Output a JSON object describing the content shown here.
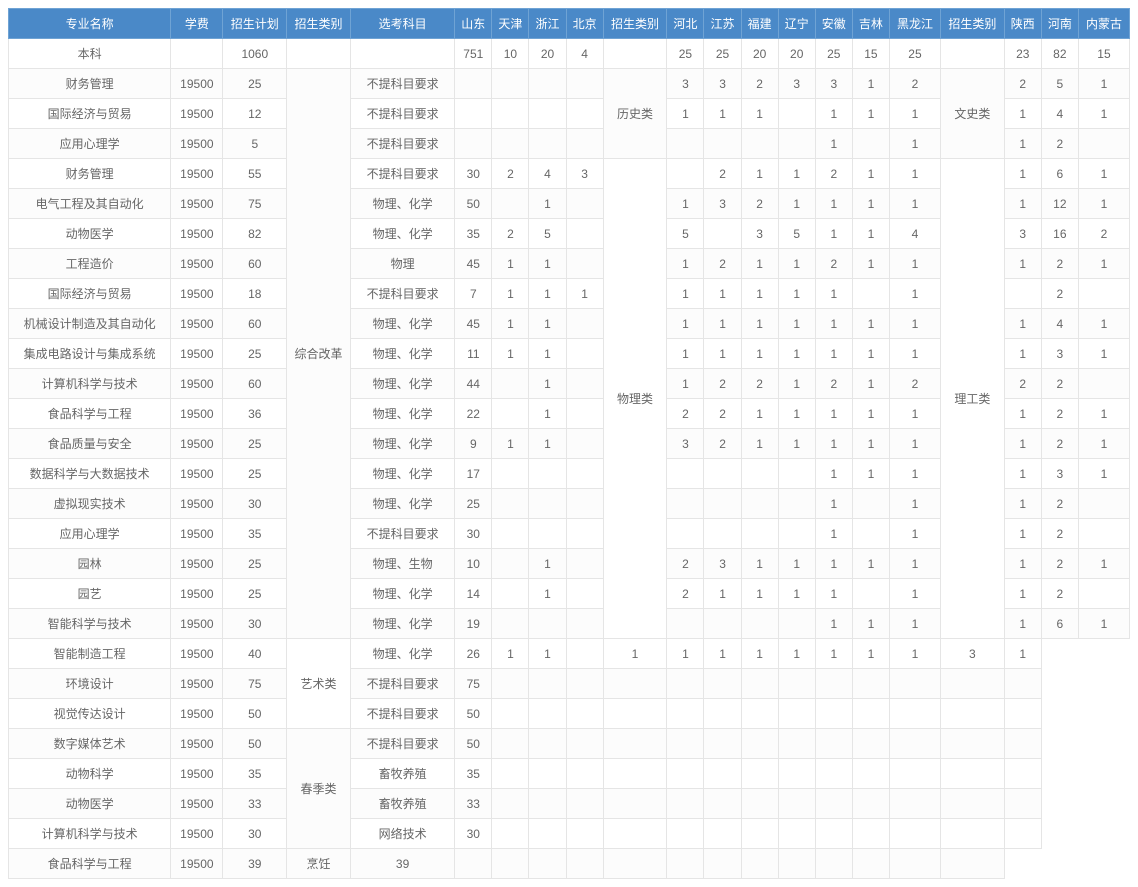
{
  "header_bg": "#4a89c8",
  "header_fg": "#ffffff",
  "border_color": "#e5e5e5",
  "columns": [
    "专业名称",
    "学费",
    "招生计划",
    "招生类别",
    "选考科目",
    "山东",
    "天津",
    "浙江",
    "北京",
    "招生类别",
    "河北",
    "江苏",
    "福建",
    "辽宁",
    "安徽",
    "吉林",
    "黑龙江",
    "招生类别",
    "陕西",
    "河南",
    "内蒙古"
  ],
  "col_classes": [
    "col-name",
    "col-fee",
    "col-plan",
    "col-cat1",
    "col-subj",
    "col-prov",
    "col-prov",
    "col-prov",
    "col-prov",
    "col-cat2",
    "col-prov",
    "col-prov",
    "col-prov",
    "col-prov",
    "col-prov",
    "col-prov",
    "col-prov-w",
    "col-cat3",
    "col-prov",
    "col-prov",
    "col-prov-w"
  ],
  "cat1_groups": [
    {
      "label": "综合改革",
      "span": 19
    },
    {
      "label": "艺术类",
      "span": 3
    },
    {
      "label": "春季类",
      "span": 4
    }
  ],
  "cat2_groups": [
    {
      "label": "历史类",
      "span": 3
    },
    {
      "label": "物理类",
      "span": 16
    }
  ],
  "cat3_groups": [
    {
      "label": "文史类",
      "span": 3
    },
    {
      "label": "理工类",
      "span": 16
    }
  ],
  "rows": [
    {
      "name": "本科",
      "fee": "",
      "plan": "1060",
      "subj": "",
      "p": [
        "751",
        "10",
        "20",
        "4",
        "25",
        "25",
        "20",
        "20",
        "25",
        "15",
        "25",
        "23",
        "82",
        "15"
      ]
    },
    {
      "name": "财务管理",
      "fee": "19500",
      "plan": "25",
      "subj": "不提科目要求",
      "p": [
        "",
        "",
        "",
        "",
        "3",
        "3",
        "2",
        "3",
        "3",
        "1",
        "2",
        "2",
        "5",
        "1"
      ]
    },
    {
      "name": "国际经济与贸易",
      "fee": "19500",
      "plan": "12",
      "subj": "不提科目要求",
      "p": [
        "",
        "",
        "",
        "",
        "1",
        "1",
        "1",
        "",
        "1",
        "1",
        "1",
        "1",
        "4",
        "1"
      ]
    },
    {
      "name": "应用心理学",
      "fee": "19500",
      "plan": "5",
      "subj": "不提科目要求",
      "p": [
        "",
        "",
        "",
        "",
        "",
        "",
        "",
        "",
        "1",
        "",
        "1",
        "1",
        "2",
        ""
      ]
    },
    {
      "name": "财务管理",
      "fee": "19500",
      "plan": "55",
      "subj": "不提科目要求",
      "p": [
        "30",
        "2",
        "4",
        "3",
        "",
        "2",
        "1",
        "1",
        "2",
        "1",
        "1",
        "1",
        "6",
        "1"
      ]
    },
    {
      "name": "电气工程及其自动化",
      "fee": "19500",
      "plan": "75",
      "subj": "物理、化学",
      "p": [
        "50",
        "",
        "1",
        "",
        "1",
        "3",
        "2",
        "1",
        "1",
        "1",
        "1",
        "1",
        "12",
        "1"
      ]
    },
    {
      "name": "动物医学",
      "fee": "19500",
      "plan": "82",
      "subj": "物理、化学",
      "p": [
        "35",
        "2",
        "5",
        "",
        "5",
        "",
        "3",
        "5",
        "1",
        "1",
        "4",
        "3",
        "16",
        "2"
      ]
    },
    {
      "name": "工程造价",
      "fee": "19500",
      "plan": "60",
      "subj": "物理",
      "p": [
        "45",
        "1",
        "1",
        "",
        "1",
        "2",
        "1",
        "1",
        "2",
        "1",
        "1",
        "1",
        "2",
        "1"
      ]
    },
    {
      "name": "国际经济与贸易",
      "fee": "19500",
      "plan": "18",
      "subj": "不提科目要求",
      "p": [
        "7",
        "1",
        "1",
        "1",
        "1",
        "1",
        "1",
        "1",
        "1",
        "",
        "1",
        "",
        "2",
        ""
      ]
    },
    {
      "name": "机械设计制造及其自动化",
      "fee": "19500",
      "plan": "60",
      "subj": "物理、化学",
      "p": [
        "45",
        "1",
        "1",
        "",
        "1",
        "1",
        "1",
        "1",
        "1",
        "1",
        "1",
        "1",
        "4",
        "1"
      ]
    },
    {
      "name": "集成电路设计与集成系统",
      "fee": "19500",
      "plan": "25",
      "subj": "物理、化学",
      "p": [
        "11",
        "1",
        "1",
        "",
        "1",
        "1",
        "1",
        "1",
        "1",
        "1",
        "1",
        "1",
        "3",
        "1"
      ]
    },
    {
      "name": "计算机科学与技术",
      "fee": "19500",
      "plan": "60",
      "subj": "物理、化学",
      "p": [
        "44",
        "",
        "1",
        "",
        "1",
        "2",
        "2",
        "1",
        "2",
        "1",
        "2",
        "2",
        "2",
        ""
      ]
    },
    {
      "name": "食品科学与工程",
      "fee": "19500",
      "plan": "36",
      "subj": "物理、化学",
      "p": [
        "22",
        "",
        "1",
        "",
        "2",
        "2",
        "1",
        "1",
        "1",
        "1",
        "1",
        "1",
        "2",
        "1"
      ]
    },
    {
      "name": "食品质量与安全",
      "fee": "19500",
      "plan": "25",
      "subj": "物理、化学",
      "p": [
        "9",
        "1",
        "1",
        "",
        "3",
        "2",
        "1",
        "1",
        "1",
        "1",
        "1",
        "1",
        "2",
        "1"
      ]
    },
    {
      "name": "数据科学与大数据技术",
      "fee": "19500",
      "plan": "25",
      "subj": "物理、化学",
      "p": [
        "17",
        "",
        "",
        "",
        "",
        "",
        "",
        "",
        "1",
        "1",
        "1",
        "1",
        "3",
        "1"
      ]
    },
    {
      "name": "虚拟现实技术",
      "fee": "19500",
      "plan": "30",
      "subj": "物理、化学",
      "p": [
        "25",
        "",
        "",
        "",
        "",
        "",
        "",
        "",
        "1",
        "",
        "1",
        "1",
        "2",
        ""
      ]
    },
    {
      "name": "应用心理学",
      "fee": "19500",
      "plan": "35",
      "subj": "不提科目要求",
      "p": [
        "30",
        "",
        "",
        "",
        "",
        "",
        "",
        "",
        "1",
        "",
        "1",
        "1",
        "2",
        ""
      ]
    },
    {
      "name": "园林",
      "fee": "19500",
      "plan": "25",
      "subj": "物理、生物",
      "p": [
        "10",
        "",
        "1",
        "",
        "2",
        "3",
        "1",
        "1",
        "1",
        "1",
        "1",
        "1",
        "2",
        "1"
      ]
    },
    {
      "name": "园艺",
      "fee": "19500",
      "plan": "25",
      "subj": "物理、化学",
      "p": [
        "14",
        "",
        "1",
        "",
        "2",
        "1",
        "1",
        "1",
        "1",
        "",
        "1",
        "1",
        "2",
        ""
      ]
    },
    {
      "name": "智能科学与技术",
      "fee": "19500",
      "plan": "30",
      "subj": "物理、化学",
      "p": [
        "19",
        "",
        "",
        "",
        "",
        "",
        "",
        "",
        "1",
        "1",
        "1",
        "1",
        "6",
        "1"
      ]
    },
    {
      "name": "智能制造工程",
      "fee": "19500",
      "plan": "40",
      "subj": "物理、化学",
      "p": [
        "26",
        "1",
        "1",
        "",
        "1",
        "1",
        "1",
        "1",
        "1",
        "1",
        "1",
        "1",
        "3",
        "1"
      ]
    },
    {
      "name": "环境设计",
      "fee": "19500",
      "plan": "75",
      "subj": "不提科目要求",
      "p": [
        "75",
        "",
        "",
        "",
        "",
        "",
        "",
        "",
        "",
        "",
        "",
        "",
        "",
        ""
      ]
    },
    {
      "name": "视觉传达设计",
      "fee": "19500",
      "plan": "50",
      "subj": "不提科目要求",
      "p": [
        "50",
        "",
        "",
        "",
        "",
        "",
        "",
        "",
        "",
        "",
        "",
        "",
        "",
        ""
      ]
    },
    {
      "name": "数字媒体艺术",
      "fee": "19500",
      "plan": "50",
      "subj": "不提科目要求",
      "p": [
        "50",
        "",
        "",
        "",
        "",
        "",
        "",
        "",
        "",
        "",
        "",
        "",
        "",
        ""
      ]
    },
    {
      "name": "动物科学",
      "fee": "19500",
      "plan": "35",
      "subj": "畜牧养殖",
      "p": [
        "35",
        "",
        "",
        "",
        "",
        "",
        "",
        "",
        "",
        "",
        "",
        "",
        "",
        ""
      ]
    },
    {
      "name": "动物医学",
      "fee": "19500",
      "plan": "33",
      "subj": "畜牧养殖",
      "p": [
        "33",
        "",
        "",
        "",
        "",
        "",
        "",
        "",
        "",
        "",
        "",
        "",
        "",
        ""
      ]
    },
    {
      "name": "计算机科学与技术",
      "fee": "19500",
      "plan": "30",
      "subj": "网络技术",
      "p": [
        "30",
        "",
        "",
        "",
        "",
        "",
        "",
        "",
        "",
        "",
        "",
        "",
        "",
        ""
      ]
    },
    {
      "name": "食品科学与工程",
      "fee": "19500",
      "plan": "39",
      "subj": "烹饪",
      "p": [
        "39",
        "",
        "",
        "",
        "",
        "",
        "",
        "",
        "",
        "",
        "",
        "",
        "",
        ""
      ]
    }
  ]
}
